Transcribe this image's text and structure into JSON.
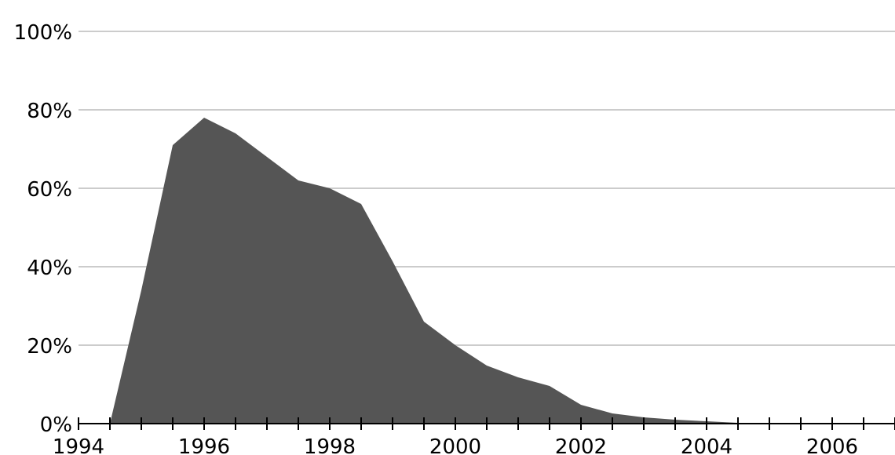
{
  "chart_data": {
    "type": "area",
    "title": "",
    "xlabel": "",
    "ylabel": "",
    "xlim": [
      1994,
      2007
    ],
    "ylim": [
      0,
      100
    ],
    "grid": true,
    "fill_color": "#555555",
    "grid_color": "#cccccc",
    "x_ticks": [
      1994,
      1996,
      1998,
      2000,
      2002,
      2004,
      2006
    ],
    "x_tick_labels": [
      "1994",
      "1996",
      "1998",
      "2000",
      "2002",
      "2004",
      "2006"
    ],
    "y_ticks": [
      0,
      20,
      40,
      60,
      80,
      100
    ],
    "y_tick_labels": [
      "0%",
      "20%",
      "40%",
      "60%",
      "80%",
      "100%"
    ],
    "series": [
      {
        "x": [
          1994.5,
          1995,
          1995.5,
          1996,
          1996.5,
          1997,
          1997.5,
          1998,
          1998.5,
          1999,
          1999.5,
          2000,
          2000.5,
          2001,
          2001.5,
          2002,
          2002.5,
          2003,
          2003.5,
          2004,
          2004.5,
          2005
        ],
        "y": [
          0,
          34,
          71,
          78,
          74,
          68,
          62,
          60,
          56,
          41.4,
          26,
          20,
          14.8,
          11.8,
          9.6,
          4.8,
          2.6,
          1.6,
          1,
          0.6,
          0.2,
          0
        ]
      }
    ]
  }
}
